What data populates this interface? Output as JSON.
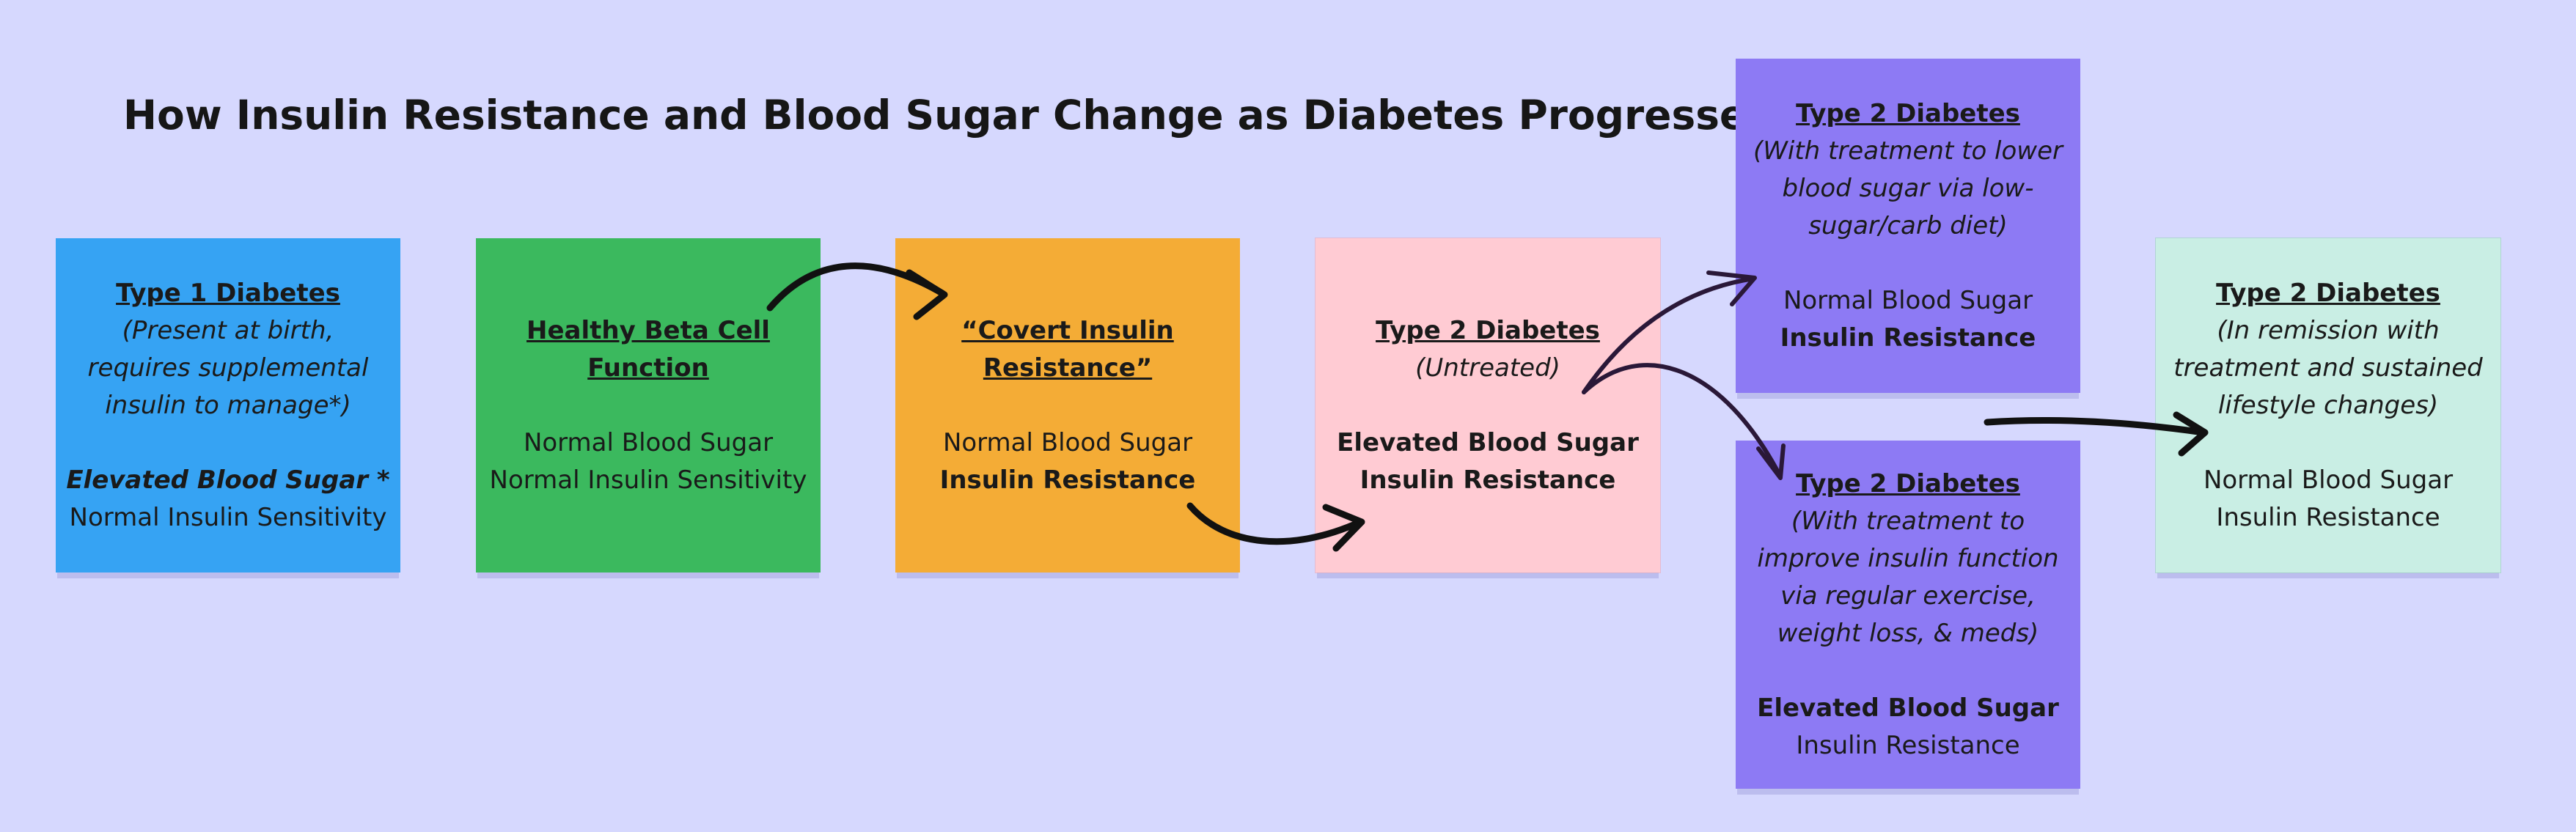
{
  "title": "How Insulin Resistance and Blood Sugar Change as Diabetes Progresses",
  "cards": [
    {
      "id": "type-1",
      "heading": "Type 1 Diabetes",
      "note": [
        "(Present at birth,",
        "requires supplemental",
        "insulin to manage*)"
      ],
      "blood_sugar": "Elevated Blood Sugar *",
      "insulin": "Normal Insulin Sensitivity",
      "color": "#36a3f3"
    },
    {
      "id": "healthy",
      "heading": [
        "Healthy Beta Cell",
        "Function"
      ],
      "blood_sugar": "Normal Blood Sugar",
      "insulin": "Normal Insulin Sensitivity",
      "color": "#3bb95e"
    },
    {
      "id": "covert",
      "heading": [
        "“Covert Insulin",
        "Resistance”"
      ],
      "blood_sugar": "Normal Blood Sugar",
      "insulin": "Insulin Resistance",
      "color": "#f4ac36"
    },
    {
      "id": "type-2-untreated",
      "heading": "Type 2 Diabetes",
      "note": [
        "(Untreated)"
      ],
      "blood_sugar": "Elevated Blood Sugar",
      "insulin": "Insulin Resistance",
      "color": "#ffcbd3"
    },
    {
      "id": "type-2-diet",
      "heading": "Type 2 Diabetes",
      "note": [
        "(With treatment to lower",
        "blood sugar via low-",
        "sugar/carb diet)"
      ],
      "blood_sugar": "Normal Blood Sugar",
      "insulin": "Insulin Resistance",
      "color": "#8d7af4"
    },
    {
      "id": "type-2-exercise",
      "heading": "Type 2 Diabetes",
      "note": [
        "(With treatment to",
        "improve insulin function",
        "via regular exercise,",
        "weight loss, & meds)"
      ],
      "blood_sugar": "Elevated Blood Sugar",
      "insulin": "Insulin Resistance",
      "color": "#8d7af4"
    },
    {
      "id": "type-2-remission",
      "heading": "Type 2 Diabetes",
      "note": [
        "(In remission with",
        "treatment and sustained",
        "lifestyle changes)"
      ],
      "blood_sugar": "Normal Blood Sugar",
      "insulin": "Insulin Resistance",
      "color": "#c9eee4"
    }
  ],
  "arrow_color": "#111111",
  "arrow_color_secondary": "#2a1838"
}
